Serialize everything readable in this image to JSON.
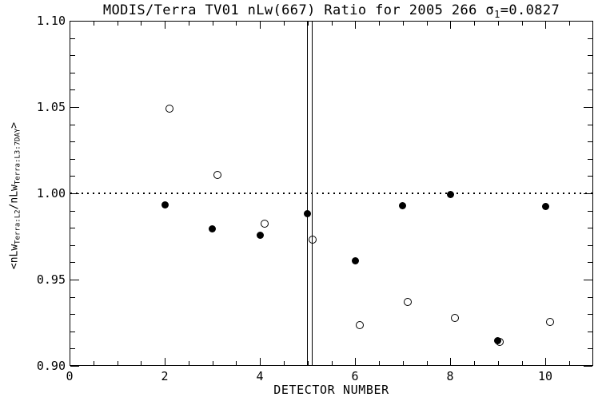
{
  "figure": {
    "background": "#ffffff",
    "foreground": "#000000"
  },
  "title": {
    "part1": "MODIS/Terra TV01 nLw(667) Ratio for 2005 266 ",
    "sigma": "σ",
    "sigma_sub": "1",
    "part2": "=0.0827"
  },
  "x_axis": {
    "label": "DETECTOR NUMBER",
    "tick_labels": [
      "0",
      "2",
      "4",
      "6",
      "8",
      "10"
    ]
  },
  "y_axis": {
    "label_parts": {
      "open": "<nLw",
      "sub1": "Terra:L2",
      "mid": "/nLw",
      "sub2": "Terra:L3:7DAY",
      "close": ">"
    },
    "tick_labels": [
      "0.90",
      "0.95",
      "1.00",
      "1.05",
      "1.10"
    ]
  },
  "chart_data": {
    "type": "scatter",
    "title": "MODIS/Terra TV01 nLw(667) Ratio for 2005 266 σ1=0.0827",
    "xlabel": "DETECTOR NUMBER",
    "ylabel": "<nLw_Terra:L2 / nLw_Terra:L3:7DAY>",
    "xlim": [
      0,
      11
    ],
    "ylim": [
      0.9,
      1.1
    ],
    "x_major_ticks": [
      0,
      2,
      4,
      6,
      8,
      10
    ],
    "x_minor_step": 0.5,
    "y_major_ticks": [
      0.9,
      0.95,
      1.0,
      1.05,
      1.1
    ],
    "y_minor_step": 0.01,
    "grid": false,
    "legend": "none",
    "reference_line_y": 1.0,
    "detector_boundary_lines_x": [
      4.99,
      5.09
    ],
    "detectors": [
      2,
      3,
      4,
      5,
      6,
      7,
      8,
      9,
      10
    ],
    "series": [
      {
        "name": "ratio-open-circle",
        "marker": "open-circle",
        "x_offsets": [
          0.1,
          0.1,
          0.1,
          0.1,
          0.1,
          0.1,
          0.1,
          0.03,
          0.1
        ],
        "values": [
          1.0493,
          1.0106,
          0.9824,
          0.9731,
          0.9238,
          0.937,
          0.9279,
          0.914,
          0.9256
        ]
      },
      {
        "name": "ratio-filled-circle",
        "marker": "filled-circle",
        "x_offsets": [
          0,
          0,
          0,
          0,
          0,
          0,
          0,
          0,
          0
        ],
        "values": [
          0.9935,
          0.9796,
          0.9759,
          0.988,
          0.961,
          0.9926,
          0.9995,
          0.9145,
          0.9923
        ]
      }
    ]
  }
}
